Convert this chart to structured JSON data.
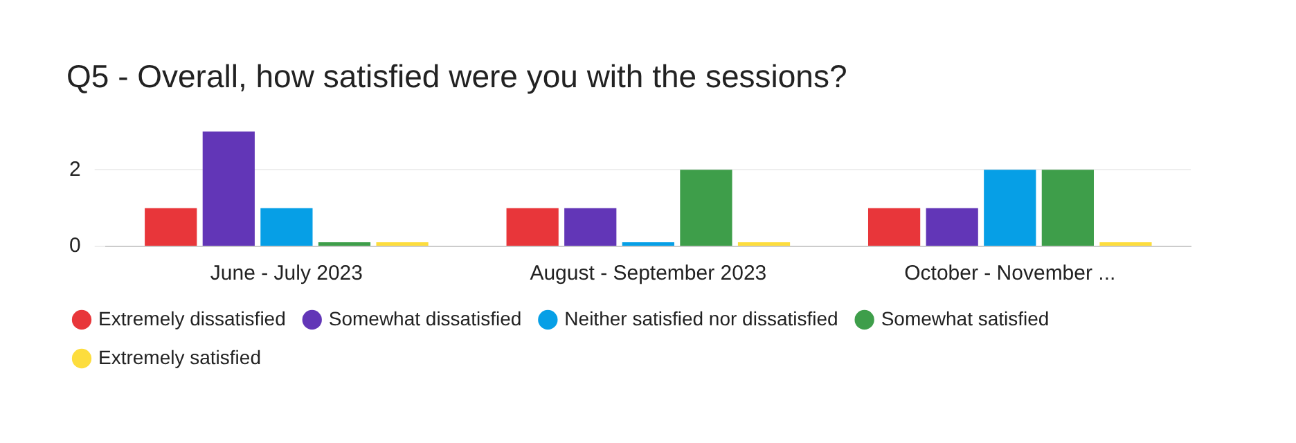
{
  "chart_data": {
    "type": "bar",
    "title": "Q5 - Overall, how satisfied were you with the sessions?",
    "categories": [
      "June - July 2023",
      "August - September 2023",
      "October - November ..."
    ],
    "series": [
      {
        "name": "Extremely dissatisfied",
        "color": "#e8363a",
        "values": [
          1,
          1,
          1
        ]
      },
      {
        "name": "Somewhat dissatisfied",
        "color": "#6236b7",
        "values": [
          3,
          1,
          1
        ]
      },
      {
        "name": "Neither satisfied nor dissatisfied",
        "color": "#069fe6",
        "values": [
          1,
          0,
          2
        ]
      },
      {
        "name": "Somewhat satisfied",
        "color": "#3e9e4a",
        "values": [
          0,
          2,
          2
        ]
      },
      {
        "name": "Extremely satisfied",
        "color": "#fddd3d",
        "values": [
          0,
          0,
          0
        ]
      }
    ],
    "ylim": [
      0,
      3
    ],
    "yticks": [
      0,
      2
    ],
    "grid": "y",
    "legend": "bottom",
    "marker": "circle"
  }
}
